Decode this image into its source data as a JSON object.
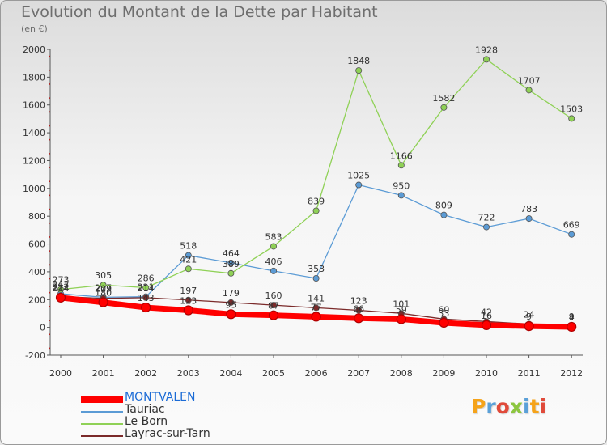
{
  "title": "Evolution du Montant de la Dette par Habitant",
  "unit_label": "(en €)",
  "logo": {
    "text": "Proxiti",
    "colors": [
      "#f5a31a",
      "#5aa0d8",
      "#e04a3a",
      "#8cc63f",
      "#5aa0d8",
      "#f5a31a",
      "#e04a3a"
    ]
  },
  "chart_data": {
    "type": "line",
    "x": [
      2000,
      2001,
      2002,
      2003,
      2004,
      2005,
      2006,
      2007,
      2008,
      2009,
      2010,
      2011,
      2012
    ],
    "ylim": [
      -200,
      2000
    ],
    "yticks": [
      -200,
      0,
      200,
      400,
      600,
      800,
      1000,
      1200,
      1400,
      1600,
      1800,
      2000
    ],
    "grid": false,
    "legend_position": "bottom-left",
    "series": [
      {
        "name": "MONTVALEN",
        "color": "#ff0000",
        "values": [
          214,
          180,
          143,
          123,
          95,
          87,
          77,
          66,
          59,
          33,
          16,
          9,
          4
        ]
      },
      {
        "name": "Tauriac",
        "color": "#5b9bd5",
        "values": [
          242,
          217,
          221,
          518,
          464,
          406,
          353,
          1025,
          950,
          809,
          722,
          783,
          669
        ]
      },
      {
        "name": "Le Born",
        "color": "#8fd156",
        "values": [
          273,
          305,
          286,
          421,
          389,
          583,
          839,
          1848,
          1166,
          1582,
          1928,
          1707,
          1503
        ]
      },
      {
        "name": "Layrac-sur-Tarn",
        "color": "#7b2a2a",
        "values": [
          222,
          209,
          214,
          197,
          179,
          160,
          141,
          123,
          101,
          60,
          42,
          24,
          9
        ]
      }
    ]
  }
}
